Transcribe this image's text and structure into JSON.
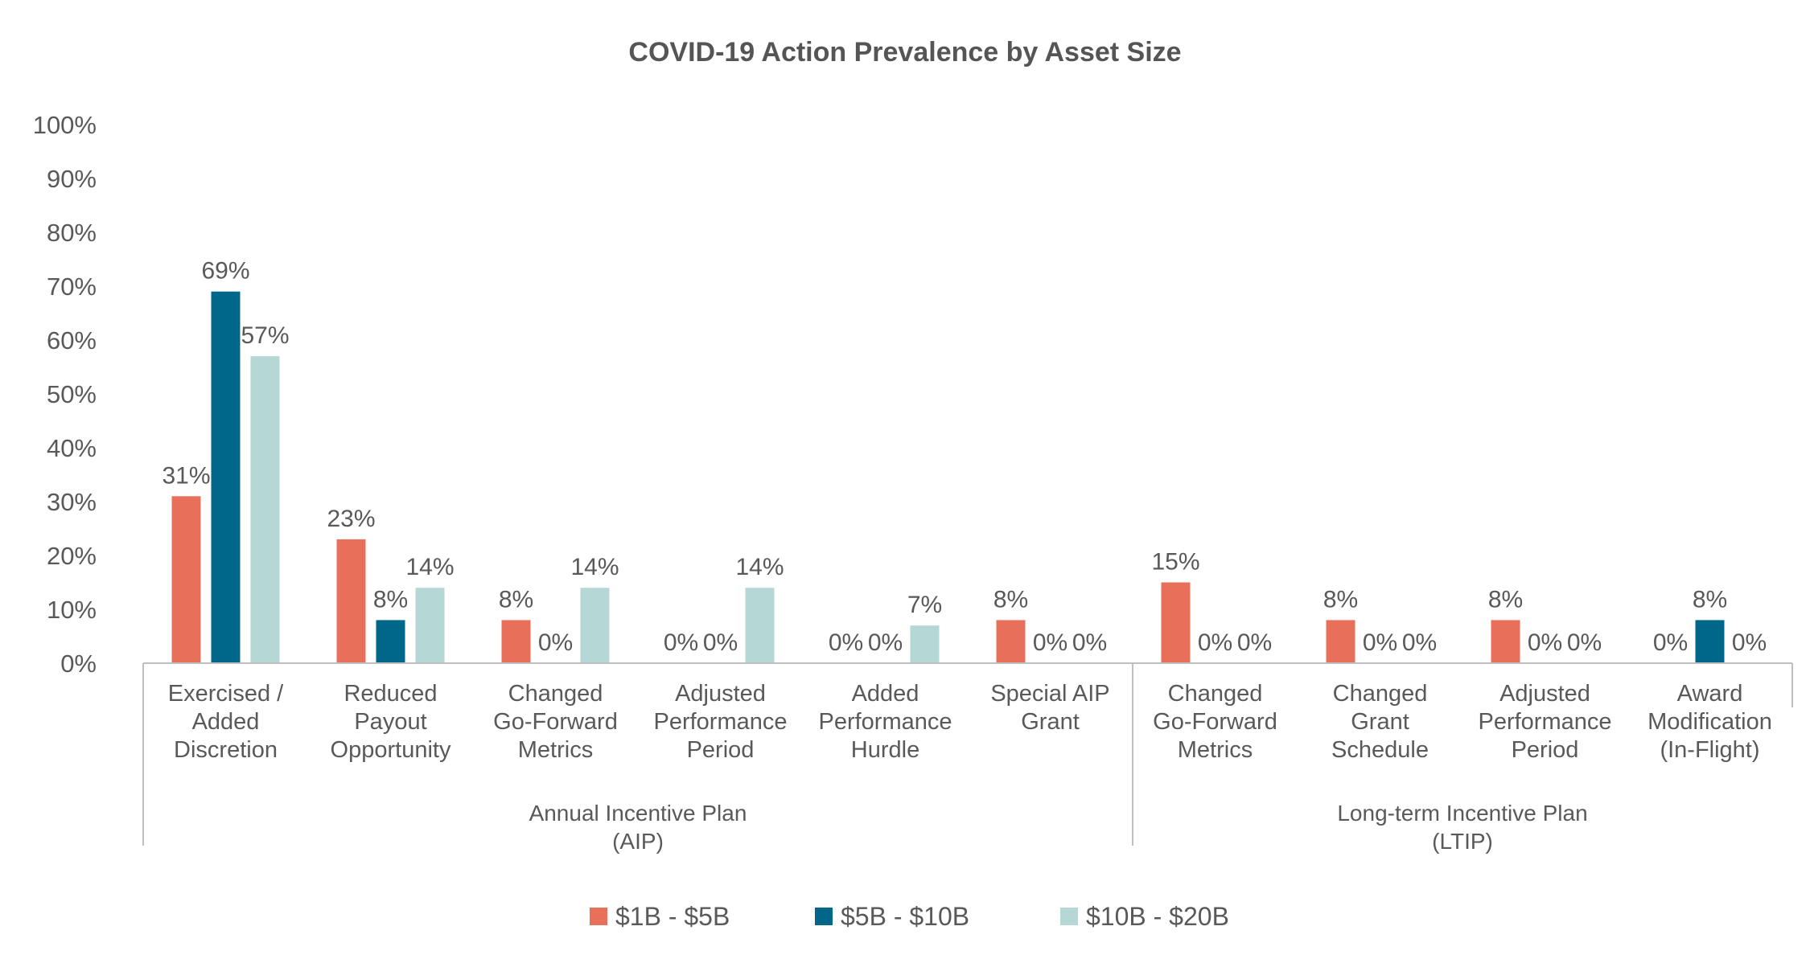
{
  "chart_data": {
    "type": "bar",
    "title": "COVID-19 Action Prevalence by Asset Size",
    "xlabel": "",
    "ylabel": "",
    "ylim": [
      0,
      100
    ],
    "yticks": [
      "0%",
      "10%",
      "20%",
      "30%",
      "40%",
      "50%",
      "60%",
      "70%",
      "80%",
      "90%",
      "100%"
    ],
    "grid": false,
    "legend_position": "bottom",
    "categories": [
      {
        "lines": [
          "Exercised /",
          "Added",
          "Discretion"
        ]
      },
      {
        "lines": [
          "Reduced",
          "Payout",
          "Opportunity"
        ]
      },
      {
        "lines": [
          "Changed",
          "Go-Forward",
          "Metrics"
        ]
      },
      {
        "lines": [
          "Adjusted",
          "Performance",
          "Period"
        ]
      },
      {
        "lines": [
          "Added",
          "Performance",
          "Hurdle"
        ]
      },
      {
        "lines": [
          "Special AIP",
          "Grant"
        ]
      },
      {
        "lines": [
          "Changed",
          "Go-Forward",
          "Metrics"
        ]
      },
      {
        "lines": [
          "Changed",
          "Grant",
          "Schedule"
        ]
      },
      {
        "lines": [
          "Adjusted",
          "Performance",
          "Period"
        ]
      },
      {
        "lines": [
          "Award",
          "Modification",
          "(In-Flight)"
        ]
      }
    ],
    "groups": [
      {
        "lines": [
          "Annual Incentive Plan",
          "(AIP)"
        ],
        "span": [
          0,
          5
        ]
      },
      {
        "lines": [
          "Long-term Incentive Plan",
          "(LTIP)"
        ],
        "span": [
          6,
          9
        ]
      }
    ],
    "series": [
      {
        "name": "$1B - $5B",
        "color": "#E8705A",
        "values": [
          31,
          23,
          8,
          0,
          0,
          8,
          15,
          8,
          8,
          0
        ],
        "labels": [
          "31%",
          "23%",
          "8%",
          "0%",
          "0%",
          "8%",
          "15%",
          "8%",
          "8%",
          "0%"
        ]
      },
      {
        "name": "$5B - $10B",
        "color": "#00678A",
        "values": [
          69,
          8,
          0,
          0,
          0,
          0,
          0,
          0,
          0,
          8
        ],
        "labels": [
          "69%",
          "8%",
          "0%",
          "0%",
          "0%",
          "0%",
          "0%",
          "0%",
          "0%",
          "8%"
        ]
      },
      {
        "name": "$10B - $20B",
        "color": "#B5D8D6",
        "values": [
          57,
          14,
          14,
          14,
          7,
          0,
          0,
          0,
          0,
          0
        ],
        "labels": [
          "57%",
          "14%",
          "14%",
          "14%",
          "7%",
          "0%",
          "0%",
          "0%",
          "0%",
          "0%"
        ]
      }
    ]
  }
}
